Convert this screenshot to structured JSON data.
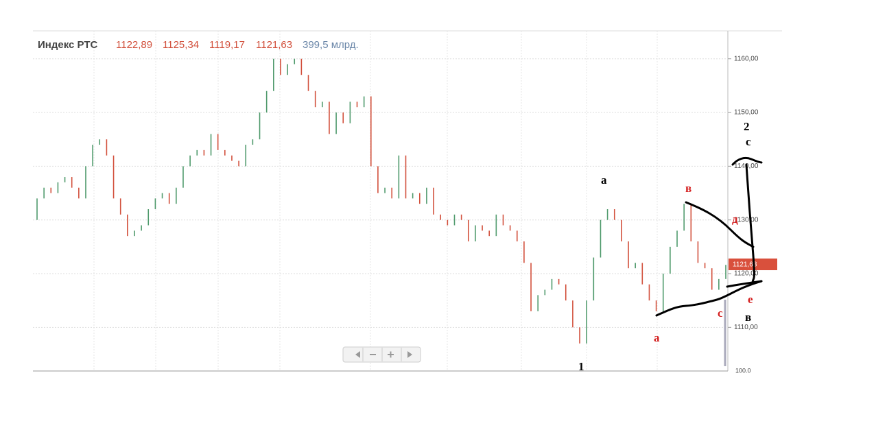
{
  "chart_data": {
    "type": "ohlc",
    "title": "Индекс РТС",
    "header_values": [
      "1122,89",
      "1125,34",
      "1119,17",
      "1121,63"
    ],
    "volume": "399,5 млрд.",
    "last_price_label": "1121,63",
    "navigator_label": "100.0",
    "up_color": "#4f9a6c",
    "down_color": "#d2503c",
    "open": [
      1130,
      1134,
      1136,
      1135,
      1137,
      1138,
      1136,
      1134,
      1140,
      1144,
      1145,
      1142,
      1134,
      1131,
      1127,
      1128,
      1129,
      1132,
      1134,
      1135,
      1133,
      1136,
      1140,
      1142,
      1143,
      1142,
      1146,
      1143,
      1142,
      1141,
      1140,
      1144,
      1145,
      1150,
      1154,
      1160,
      1157,
      1159,
      1160,
      1157,
      1154,
      1151,
      1152,
      1146,
      1150,
      1148,
      1152,
      1151,
      1153,
      1140,
      1135,
      1136,
      1134,
      1142,
      1134,
      1135,
      1133,
      1136,
      1131,
      1130,
      1129,
      1131,
      1130,
      1126,
      1129,
      1128,
      1127,
      1131,
      1129,
      1128,
      1126,
      1122,
      1113,
      1116,
      1117,
      1119,
      1118,
      1115,
      1110,
      1107,
      1115,
      1123,
      1130,
      1132,
      1130,
      1126,
      1121,
      1122,
      1118,
      1115,
      1113,
      1120,
      1125,
      1128,
      1133,
      1126,
      1122,
      1121,
      1117,
      1119
    ],
    "close": [
      1134,
      1136,
      1135,
      1137,
      1138,
      1136,
      1134,
      1140,
      1144,
      1145,
      1142,
      1134,
      1131,
      1127,
      1128,
      1129,
      1132,
      1134,
      1135,
      1133,
      1136,
      1140,
      1142,
      1143,
      1142,
      1146,
      1143,
      1142,
      1141,
      1140,
      1144,
      1145,
      1150,
      1154,
      1160,
      1157,
      1159,
      1160,
      1157,
      1154,
      1151,
      1152,
      1146,
      1150,
      1148,
      1152,
      1151,
      1153,
      1140,
      1135,
      1136,
      1134,
      1142,
      1134,
      1135,
      1133,
      1136,
      1131,
      1130,
      1129,
      1131,
      1130,
      1126,
      1129,
      1128,
      1127,
      1131,
      1129,
      1128,
      1126,
      1122,
      1113,
      1116,
      1117,
      1119,
      1118,
      1115,
      1110,
      1107,
      1115,
      1123,
      1130,
      1132,
      1130,
      1126,
      1121,
      1122,
      1118,
      1115,
      1113,
      1120,
      1125,
      1128,
      1133,
      1126,
      1122,
      1121,
      1117,
      1119,
      1121.63
    ],
    "ylim": [
      1102,
      1165.2
    ],
    "yticks": [
      {
        "value": 1110,
        "label": "1110,00"
      },
      {
        "value": 1120,
        "label": "1120,00"
      },
      {
        "value": 1130,
        "label": "1130,00"
      },
      {
        "value": 1140,
        "label": "1140,00"
      },
      {
        "value": 1150,
        "label": "1150,00"
      },
      {
        "value": 1160,
        "label": "1160,00"
      }
    ],
    "grid": true,
    "annotations": [
      {
        "text": "a",
        "color": "#000000"
      },
      {
        "text": "в",
        "color": "#d42020"
      },
      {
        "text": "д",
        "color": "#d42020"
      },
      {
        "text": "2",
        "color": "#000000"
      },
      {
        "text": "c",
        "color": "#000000"
      },
      {
        "text": "e",
        "color": "#d42020"
      },
      {
        "text": "c",
        "color": "#d42020"
      },
      {
        "text": "в",
        "color": "#000000"
      },
      {
        "text": "a",
        "color": "#d42020"
      },
      {
        "text": "1",
        "color": "#000000"
      }
    ]
  }
}
